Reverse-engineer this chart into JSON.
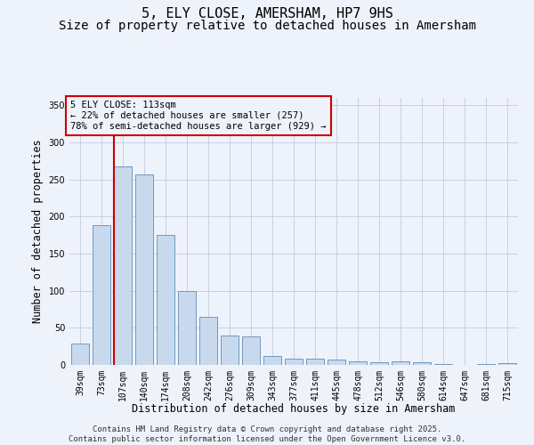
{
  "title_line1": "5, ELY CLOSE, AMERSHAM, HP7 9HS",
  "title_line2": "Size of property relative to detached houses in Amersham",
  "xlabel": "Distribution of detached houses by size in Amersham",
  "ylabel": "Number of detached properties",
  "categories": [
    "39sqm",
    "73sqm",
    "107sqm",
    "140sqm",
    "174sqm",
    "208sqm",
    "242sqm",
    "276sqm",
    "309sqm",
    "343sqm",
    "377sqm",
    "411sqm",
    "445sqm",
    "478sqm",
    "512sqm",
    "546sqm",
    "580sqm",
    "614sqm",
    "647sqm",
    "681sqm",
    "715sqm"
  ],
  "values": [
    29,
    188,
    268,
    257,
    175,
    100,
    65,
    40,
    38,
    12,
    8,
    8,
    7,
    5,
    4,
    5,
    4,
    1,
    0,
    1,
    2
  ],
  "bar_color": "#c9d9ed",
  "bar_edge_color": "#7099be",
  "grid_color": "#c8d0e0",
  "background_color": "#eef2fb",
  "vline_x_index": 2,
  "vline_color": "#cc0000",
  "annotation_box_text": "5 ELY CLOSE: 113sqm\n← 22% of detached houses are smaller (257)\n78% of semi-detached houses are larger (929) →",
  "annotation_box_color": "#cc0000",
  "ylim": [
    0,
    360
  ],
  "yticks": [
    0,
    50,
    100,
    150,
    200,
    250,
    300,
    350
  ],
  "footer_line1": "Contains HM Land Registry data © Crown copyright and database right 2025.",
  "footer_line2": "Contains public sector information licensed under the Open Government Licence v3.0.",
  "title_fontsize": 11,
  "subtitle_fontsize": 10,
  "axis_label_fontsize": 8.5,
  "tick_fontsize": 7,
  "annotation_fontsize": 7.5,
  "footer_fontsize": 6.5
}
